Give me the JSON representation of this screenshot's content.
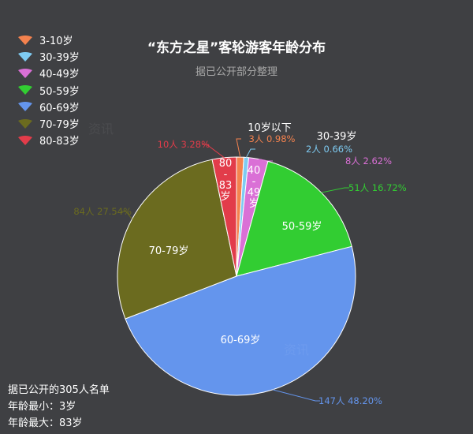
{
  "title": "“东方之星”客轮游客年龄分布",
  "subtitle": "据已公开部分整理",
  "legend": [
    {
      "label": "3-10岁",
      "color": "#f4824e"
    },
    {
      "label": "30-39岁",
      "color": "#7ecbf2"
    },
    {
      "label": "40-49岁",
      "color": "#da70d6"
    },
    {
      "label": "50-59岁",
      "color": "#32cd32"
    },
    {
      "label": "60-69岁",
      "color": "#6495ed"
    },
    {
      "label": "70-79岁",
      "color": "#6b6b1f"
    },
    {
      "label": "80-83岁",
      "color": "#e23c4a"
    }
  ],
  "chart_data": {
    "type": "pie",
    "title": "“东方之星”客轮游客年龄分布",
    "subtitle": "据已公开部分整理",
    "slices": [
      {
        "name": "3-10岁",
        "inner_label": "10岁以下",
        "value": 3,
        "percent": "0.98%",
        "value_label": "3人",
        "color": "#f4824e"
      },
      {
        "name": "30-39岁",
        "inner_label": "30-39岁",
        "value": 2,
        "percent": "0.66%",
        "value_label": "2人",
        "color": "#7ecbf2"
      },
      {
        "name": "40-49岁",
        "inner_label": "40-49岁",
        "value": 8,
        "percent": "2.62%",
        "value_label": "8人",
        "color": "#da70d6"
      },
      {
        "name": "50-59岁",
        "inner_label": "50-59岁",
        "value": 51,
        "percent": "16.72%",
        "value_label": "51人",
        "color": "#32cd32"
      },
      {
        "name": "60-69岁",
        "inner_label": "60-69岁",
        "value": 147,
        "percent": "48.20%",
        "value_label": "147人",
        "color": "#6495ed"
      },
      {
        "name": "70-79岁",
        "inner_label": "70-79岁",
        "value": 84,
        "percent": "27.54%",
        "value_label": "84人",
        "color": "#6b6b1f"
      },
      {
        "name": "80-83岁",
        "inner_label": "80-83岁",
        "value": 10,
        "percent": "3.28%",
        "value_label": "10人",
        "color": "#e23c4a"
      }
    ],
    "legend_position": "top-left"
  },
  "footnote": [
    "据已公开的305人名单",
    "年龄最小：3岁",
    "年龄最大：83岁"
  ],
  "watermark_text": "资讯"
}
